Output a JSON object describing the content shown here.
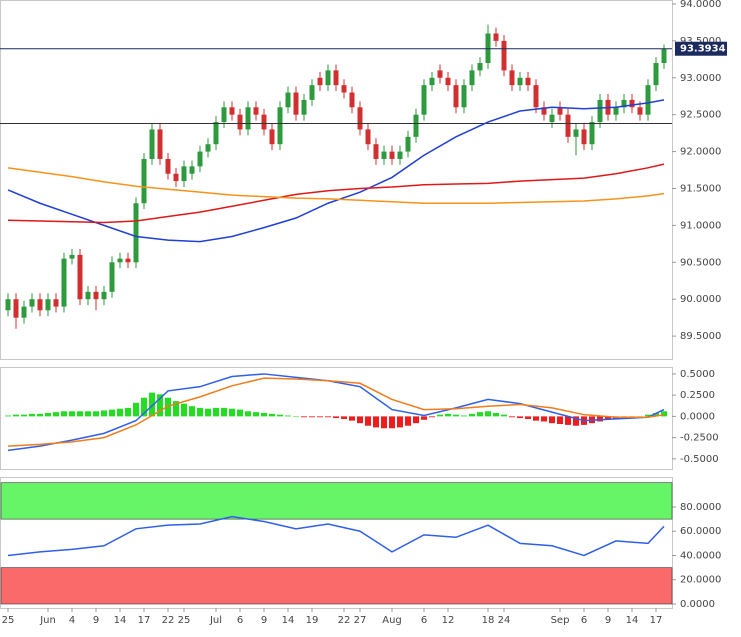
{
  "chart_data": [
    {
      "type": "candlestick",
      "categories": [
        "25",
        null,
        null,
        null,
        null,
        "Jun",
        null,
        null,
        "4",
        null,
        null,
        "9",
        null,
        null,
        "14",
        null,
        null,
        "17",
        null,
        null,
        "22",
        null,
        "25",
        null,
        null,
        null,
        "Jul",
        null,
        null,
        "6",
        null,
        null,
        "9",
        null,
        null,
        "14",
        null,
        null,
        "19",
        null,
        null,
        null,
        "22",
        null,
        "27",
        null,
        null,
        null,
        "Aug",
        null,
        null,
        null,
        "6",
        null,
        null,
        "12",
        null,
        null,
        null,
        null,
        "18",
        null,
        "24",
        null,
        null,
        null,
        null,
        null,
        null,
        "Sep",
        null,
        null,
        "6",
        null,
        null,
        "9",
        null,
        null,
        "14",
        null,
        null,
        "17",
        null
      ],
      "open": [
        89.85,
        90.0,
        89.75,
        89.9,
        90.0,
        89.85,
        90.0,
        89.9,
        90.55,
        90.6,
        90.0,
        90.1,
        90.0,
        90.1,
        90.5,
        90.55,
        90.5,
        91.3,
        91.9,
        92.3,
        91.9,
        91.7,
        91.6,
        91.7,
        91.8,
        92.0,
        92.1,
        92.4,
        92.6,
        92.5,
        92.3,
        92.6,
        92.5,
        92.3,
        92.1,
        92.6,
        92.8,
        92.5,
        92.7,
        93.0,
        92.9,
        93.1,
        92.9,
        92.8,
        92.6,
        92.3,
        92.1,
        91.9,
        92.0,
        91.9,
        92.0,
        92.2,
        92.5,
        92.9,
        93.1,
        93.0,
        92.9,
        92.6,
        92.9,
        93.1,
        93.2,
        93.6,
        93.5,
        93.1,
        92.9,
        93.0,
        92.9,
        92.6,
        92.4,
        92.6,
        92.5,
        92.2,
        92.3,
        92.1,
        92.4,
        92.7,
        92.5,
        92.6,
        92.7,
        92.6,
        92.5,
        92.9,
        93.2
      ],
      "high": [
        90.08,
        90.08,
        89.98,
        90.08,
        90.08,
        90.08,
        90.08,
        90.63,
        90.68,
        90.68,
        90.18,
        90.18,
        90.18,
        90.58,
        90.63,
        90.63,
        91.38,
        91.98,
        92.38,
        92.38,
        91.98,
        91.78,
        91.88,
        91.88,
        92.08,
        92.18,
        92.48,
        92.68,
        92.68,
        92.58,
        92.68,
        92.68,
        92.58,
        92.38,
        92.68,
        92.88,
        92.88,
        92.78,
        92.98,
        93.08,
        93.18,
        93.18,
        92.98,
        92.88,
        92.68,
        92.38,
        92.18,
        92.08,
        92.08,
        92.08,
        92.28,
        92.58,
        92.98,
        93.08,
        93.18,
        93.08,
        92.98,
        92.98,
        93.18,
        93.28,
        93.72,
        93.68,
        93.58,
        93.18,
        93.08,
        93.08,
        92.98,
        92.68,
        92.58,
        92.68,
        92.58,
        92.38,
        92.38,
        92.48,
        92.78,
        92.78,
        92.68,
        92.78,
        92.78,
        92.68,
        92.98,
        93.28,
        93.45
      ],
      "low": [
        89.77,
        89.6,
        89.67,
        89.82,
        89.77,
        89.77,
        89.82,
        89.82,
        90.47,
        89.92,
        89.92,
        89.85,
        89.92,
        90.02,
        90.42,
        90.42,
        90.42,
        91.22,
        91.82,
        91.82,
        91.62,
        91.52,
        91.52,
        91.62,
        91.72,
        91.92,
        92.02,
        92.32,
        92.42,
        92.22,
        92.22,
        92.42,
        92.22,
        92.02,
        92.02,
        92.52,
        92.42,
        92.42,
        92.62,
        92.82,
        92.82,
        92.82,
        92.72,
        92.52,
        92.22,
        92.02,
        91.82,
        91.82,
        91.82,
        91.82,
        91.92,
        92.12,
        92.42,
        92.82,
        92.92,
        92.82,
        92.52,
        92.52,
        92.82,
        93.02,
        93.12,
        93.42,
        93.02,
        92.82,
        92.82,
        92.82,
        92.52,
        92.42,
        92.32,
        92.42,
        92.12,
        91.95,
        92.02,
        92.02,
        92.32,
        92.42,
        92.42,
        92.52,
        92.52,
        92.42,
        92.42,
        92.82,
        93.12
      ],
      "close": [
        90.0,
        89.75,
        89.9,
        90.0,
        89.85,
        90.0,
        89.9,
        90.55,
        90.6,
        90.0,
        90.1,
        90.0,
        90.1,
        90.5,
        90.55,
        90.5,
        91.3,
        91.9,
        92.3,
        91.9,
        91.7,
        91.6,
        91.8,
        91.8,
        92.0,
        92.1,
        92.4,
        92.6,
        92.5,
        92.3,
        92.6,
        92.5,
        92.3,
        92.1,
        92.6,
        92.8,
        92.5,
        92.7,
        92.9,
        92.9,
        93.1,
        92.9,
        92.8,
        92.6,
        92.3,
        92.1,
        91.9,
        92.0,
        91.9,
        92.0,
        92.2,
        92.5,
        92.9,
        93.0,
        93.0,
        92.9,
        92.6,
        92.9,
        93.1,
        93.2,
        93.6,
        93.5,
        93.1,
        92.9,
        93.0,
        92.9,
        92.6,
        92.5,
        92.5,
        92.5,
        92.2,
        92.3,
        92.1,
        92.4,
        92.7,
        92.5,
        92.6,
        92.7,
        92.6,
        92.5,
        92.9,
        93.2,
        93.39
      ],
      "up_color": "#2e9a3e",
      "down_color": "#d03030",
      "lines": [
        {
          "color": "#1f3fd6",
          "x": [
            0,
            4,
            8,
            12,
            16,
            20,
            24,
            28,
            32,
            36,
            40,
            44,
            48,
            52,
            56,
            60,
            64,
            68,
            72,
            76,
            80,
            82
          ],
          "values": [
            91.48,
            91.3,
            91.15,
            91.0,
            90.85,
            90.8,
            90.78,
            90.85,
            90.97,
            91.1,
            91.3,
            91.45,
            91.65,
            91.95,
            92.2,
            92.4,
            92.55,
            92.6,
            92.58,
            92.6,
            92.66,
            92.7
          ]
        },
        {
          "color": "#e01818",
          "x": [
            0,
            4,
            8,
            12,
            16,
            20,
            24,
            28,
            32,
            36,
            40,
            44,
            48,
            52,
            56,
            60,
            64,
            68,
            72,
            76,
            80,
            82
          ],
          "values": [
            91.07,
            91.06,
            91.05,
            91.04,
            91.06,
            91.12,
            91.18,
            91.26,
            91.34,
            91.42,
            91.47,
            91.5,
            91.52,
            91.55,
            91.56,
            91.57,
            91.6,
            91.62,
            91.64,
            91.7,
            91.78,
            91.83
          ]
        },
        {
          "color": "#f7931a",
          "x": [
            0,
            4,
            8,
            12,
            16,
            20,
            24,
            28,
            32,
            36,
            40,
            44,
            48,
            52,
            56,
            60,
            64,
            68,
            72,
            76,
            80,
            82
          ],
          "values": [
            91.78,
            91.72,
            91.66,
            91.59,
            91.53,
            91.49,
            91.45,
            91.41,
            91.39,
            91.37,
            91.36,
            91.34,
            91.32,
            91.3,
            91.3,
            91.3,
            91.31,
            91.32,
            91.33,
            91.36,
            91.4,
            91.43
          ]
        }
      ],
      "hlines": [
        {
          "value": 93.3934,
          "color": "#1c2b5e",
          "tag": true
        },
        {
          "value": 92.38,
          "color": "#333333"
        }
      ],
      "ylim": [
        89.19,
        94.04
      ],
      "yticks": [
        {
          "value": 89.5,
          "label": "89.5000"
        },
        {
          "value": 90,
          "label": "90.0000"
        },
        {
          "value": 90.5,
          "label": "90.5000"
        },
        {
          "value": 91,
          "label": "91.0000"
        },
        {
          "value": 91.5,
          "label": "91.5000"
        },
        {
          "value": 92,
          "label": "92.0000"
        },
        {
          "value": 92.5,
          "label": "92.5000"
        },
        {
          "value": 93,
          "label": "93.0000"
        },
        {
          "value": 93.5,
          "label": "93.5000"
        },
        {
          "value": 94,
          "label": "94.0000"
        }
      ]
    },
    {
      "type": "macd",
      "histogram": [
        0.01,
        0.02,
        0.02,
        0.03,
        0.03,
        0.04,
        0.05,
        0.06,
        0.06,
        0.06,
        0.06,
        0.06,
        0.07,
        0.08,
        0.09,
        0.1,
        0.16,
        0.22,
        0.28,
        0.26,
        0.22,
        0.18,
        0.15,
        0.12,
        0.1,
        0.09,
        0.1,
        0.1,
        0.09,
        0.08,
        0.06,
        0.05,
        0.04,
        0.03,
        0.02,
        0.01,
        0.0,
        -0.01,
        -0.01,
        -0.01,
        -0.01,
        -0.02,
        -0.03,
        -0.05,
        -0.08,
        -0.11,
        -0.13,
        -0.14,
        -0.14,
        -0.13,
        -0.11,
        -0.08,
        -0.04,
        -0.01,
        0.02,
        0.03,
        0.02,
        0.01,
        0.03,
        0.05,
        0.06,
        0.04,
        0.02,
        -0.01,
        -0.02,
        -0.03,
        -0.05,
        -0.06,
        -0.08,
        -0.09,
        -0.1,
        -0.11,
        -0.1,
        -0.08,
        -0.06,
        -0.04,
        -0.03,
        -0.02,
        -0.01,
        0.0,
        0.02,
        0.04,
        0.06
      ],
      "pos_color": "#22dd22",
      "neg_color": "#ee1c1c",
      "lines": [
        {
          "color": "#2f5fe8",
          "x": [
            0,
            4,
            8,
            12,
            16,
            20,
            24,
            28,
            32,
            36,
            40,
            44,
            48,
            52,
            56,
            60,
            64,
            68,
            72,
            76,
            80,
            82
          ],
          "values": [
            -0.4,
            -0.35,
            -0.28,
            -0.2,
            -0.05,
            0.3,
            0.35,
            0.47,
            0.5,
            0.46,
            0.42,
            0.35,
            0.08,
            0.01,
            0.1,
            0.2,
            0.15,
            0.05,
            -0.05,
            -0.03,
            -0.01,
            0.08
          ]
        },
        {
          "color": "#f07c1c",
          "x": [
            0,
            4,
            8,
            12,
            16,
            20,
            24,
            28,
            32,
            36,
            40,
            44,
            48,
            52,
            56,
            60,
            64,
            68,
            72,
            76,
            80,
            82
          ],
          "values": [
            -0.35,
            -0.33,
            -0.3,
            -0.25,
            -0.1,
            0.12,
            0.23,
            0.36,
            0.45,
            0.44,
            0.42,
            0.39,
            0.2,
            0.08,
            0.09,
            0.12,
            0.14,
            0.1,
            0.02,
            -0.01,
            -0.01,
            0.02
          ]
        }
      ],
      "ylim": [
        -0.62,
        0.57
      ],
      "yticks": [
        {
          "value": -0.5,
          "label": "-0.5000"
        },
        {
          "value": -0.25,
          "label": "-0.2500"
        },
        {
          "value": 0,
          "label": "0.0000"
        },
        {
          "value": 0.25,
          "label": "0.2500"
        },
        {
          "value": 0.5,
          "label": "0.5000"
        }
      ]
    },
    {
      "type": "rsi",
      "bands": [
        {
          "from": 70,
          "to": 100,
          "color": "#66f566"
        },
        {
          "from": 0,
          "to": 30,
          "color": "#fb6a6a"
        }
      ],
      "lines": [
        {
          "color": "#2f5fe8",
          "x": [
            0,
            4,
            8,
            12,
            16,
            20,
            24,
            28,
            32,
            36,
            40,
            44,
            48,
            52,
            56,
            60,
            64,
            68,
            72,
            76,
            80,
            82
          ],
          "values": [
            40,
            43,
            45,
            48,
            62,
            65,
            66,
            72,
            68,
            62,
            66,
            60,
            43,
            57,
            55,
            65,
            50,
            48,
            40,
            52,
            50,
            64
          ]
        }
      ],
      "ylim": [
        -3.3,
        103.9
      ],
      "yticks": [
        {
          "value": 0,
          "label": "0.0000"
        },
        {
          "value": 20,
          "label": "20.0000"
        },
        {
          "value": 40,
          "label": "40.0000"
        },
        {
          "value": 60,
          "label": "60.0000"
        },
        {
          "value": 80,
          "label": "80.0000"
        }
      ]
    }
  ]
}
